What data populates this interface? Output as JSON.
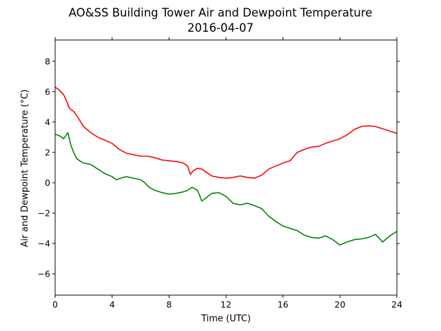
{
  "chart_data": {
    "type": "line",
    "title": "AO&SS Building Tower Air and Dewpoint Temperature",
    "subtitle": "2016-04-07",
    "xlabel": "Time (UTC)",
    "ylabel": "Air and Dewpoint Temperature (°C)",
    "xlim": [
      0,
      24
    ],
    "ylim": [
      -7.4,
      9.4
    ],
    "xticks": [
      0,
      4,
      8,
      12,
      16,
      20,
      24
    ],
    "yticks": [
      -6,
      -4,
      -2,
      0,
      2,
      4,
      6,
      8
    ],
    "grid": false,
    "legend": false,
    "series": [
      {
        "color": "#ff0000",
        "x": [
          0,
          0.3,
          0.6,
          0.8,
          1.0,
          1.3,
          1.6,
          2.0,
          2.5,
          3.0,
          3.5,
          4.0,
          4.5,
          5.0,
          5.5,
          6.0,
          6.5,
          7.0,
          7.5,
          8.0,
          8.5,
          9.0,
          9.3,
          9.5,
          9.7,
          10.0,
          10.3,
          10.6,
          11.0,
          11.5,
          12.0,
          12.5,
          13.0,
          13.5,
          14.0,
          14.5,
          15.0,
          15.5,
          16.0,
          16.5,
          17.0,
          17.5,
          18.0,
          18.5,
          19.0,
          19.5,
          20.0,
          20.5,
          21.0,
          21.5,
          22.0,
          22.5,
          23.0,
          23.5,
          24.0
        ],
        "y": [
          6.3,
          6.1,
          5.8,
          5.4,
          4.9,
          4.7,
          4.3,
          3.7,
          3.3,
          3.0,
          2.8,
          2.6,
          2.2,
          1.95,
          1.85,
          1.75,
          1.75,
          1.65,
          1.5,
          1.45,
          1.4,
          1.3,
          1.1,
          0.55,
          0.8,
          0.95,
          0.9,
          0.7,
          0.45,
          0.35,
          0.3,
          0.35,
          0.45,
          0.35,
          0.3,
          0.5,
          0.9,
          1.1,
          1.3,
          1.45,
          2.0,
          2.2,
          2.35,
          2.4,
          2.6,
          2.75,
          2.9,
          3.15,
          3.5,
          3.7,
          3.75,
          3.7,
          3.55,
          3.4,
          3.25
        ]
      },
      {
        "color": "#008000",
        "x": [
          0,
          0.3,
          0.6,
          0.9,
          1.1,
          1.3,
          1.5,
          1.8,
          2.0,
          2.5,
          3.0,
          3.5,
          4.0,
          4.3,
          4.6,
          5.0,
          5.5,
          6.0,
          6.3,
          6.6,
          7.0,
          7.5,
          8.0,
          8.5,
          9.0,
          9.3,
          9.6,
          10.0,
          10.3,
          10.6,
          11.0,
          11.5,
          12.0,
          12.5,
          13.0,
          13.5,
          14.0,
          14.5,
          15.0,
          15.5,
          16.0,
          16.5,
          17.0,
          17.5,
          18.0,
          18.5,
          19.0,
          19.5,
          20.0,
          20.5,
          21.0,
          21.5,
          22.0,
          22.5,
          23.0,
          23.5,
          24.0
        ],
        "y": [
          3.2,
          3.1,
          2.9,
          3.3,
          2.5,
          2.0,
          1.6,
          1.4,
          1.3,
          1.2,
          0.9,
          0.6,
          0.4,
          0.2,
          0.3,
          0.4,
          0.3,
          0.2,
          0.0,
          -0.3,
          -0.5,
          -0.65,
          -0.75,
          -0.7,
          -0.6,
          -0.5,
          -0.3,
          -0.5,
          -1.2,
          -1.0,
          -0.7,
          -0.65,
          -0.9,
          -1.35,
          -1.45,
          -1.35,
          -1.5,
          -1.7,
          -2.2,
          -2.55,
          -2.85,
          -3.0,
          -3.15,
          -3.45,
          -3.6,
          -3.65,
          -3.5,
          -3.75,
          -4.1,
          -3.9,
          -3.75,
          -3.7,
          -3.6,
          -3.4,
          -3.9,
          -3.5,
          -3.2
        ]
      }
    ]
  }
}
